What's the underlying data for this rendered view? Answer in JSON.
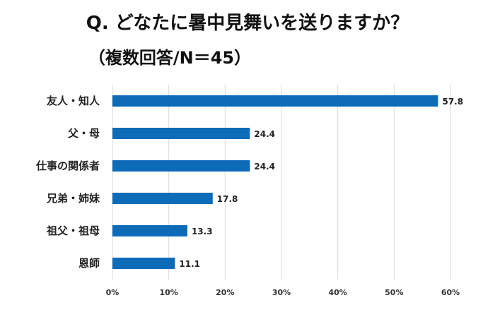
{
  "chart_data": {
    "type": "bar",
    "orientation": "horizontal",
    "title": "Q. どなたに暑中見舞いを送りますか？",
    "subtitle": "（複数回答/N＝45）",
    "categories": [
      "友人・知人",
      "父・母",
      "仕事の関係者",
      "兄弟・姉妹",
      "祖父・祖母",
      "恩師"
    ],
    "values": [
      57.8,
      24.4,
      24.4,
      17.8,
      13.3,
      11.1
    ],
    "value_labels": [
      "57.8",
      "24.4",
      "24.4",
      "17.8",
      "13.3",
      "11.1"
    ],
    "xlim": [
      0,
      60
    ],
    "x_ticks": [
      "0%",
      "10%",
      "20%",
      "30%",
      "40%",
      "50%",
      "60%"
    ],
    "grid": "vertical",
    "legend": "none",
    "bar_color": "#0e6bb8",
    "grid_color": "#d9d9d9"
  }
}
